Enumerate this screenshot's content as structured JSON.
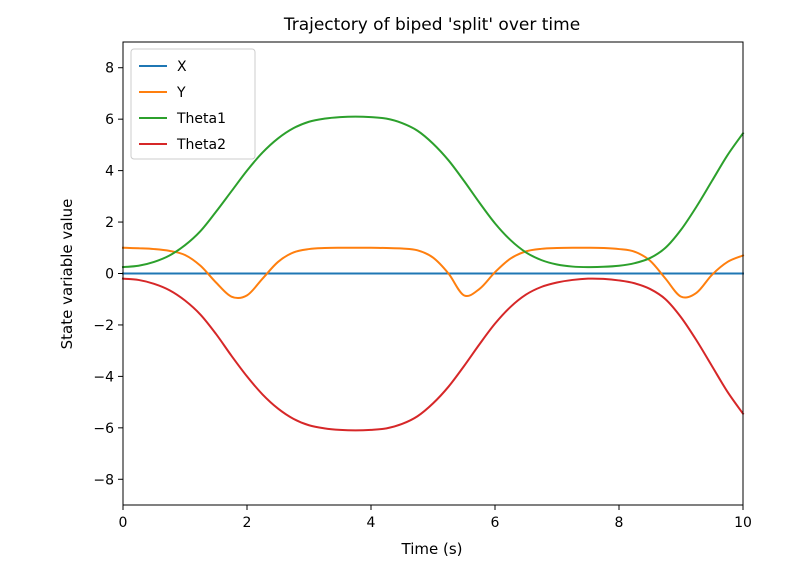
{
  "chart_data": {
    "type": "line",
    "title": "Trajectory of biped 'split' over time",
    "xlabel": "Time (s)",
    "ylabel": "State variable value",
    "xlim": [
      0,
      10
    ],
    "ylim": [
      -9,
      9
    ],
    "xticks": [
      0,
      2,
      4,
      6,
      8,
      10
    ],
    "xtick_labels": [
      "0",
      "2",
      "4",
      "6",
      "8",
      "10"
    ],
    "yticks": [
      -8,
      -6,
      -4,
      -2,
      0,
      2,
      4,
      6,
      8
    ],
    "ytick_labels": [
      "−8",
      "−6",
      "−4",
      "−2",
      "0",
      "2",
      "4",
      "6",
      "8"
    ],
    "grid": false,
    "legend_position": "top-left",
    "x": [
      0,
      0.25,
      0.5,
      0.75,
      1,
      1.25,
      1.5,
      1.75,
      2,
      2.25,
      2.5,
      2.75,
      3,
      3.25,
      3.5,
      3.75,
      4,
      4.25,
      4.5,
      4.75,
      5,
      5.25,
      5.5,
      5.75,
      6,
      6.25,
      6.5,
      6.75,
      7,
      7.25,
      7.5,
      7.75,
      8,
      8.25,
      8.5,
      8.75,
      9,
      9.25,
      9.5,
      9.75,
      10
    ],
    "series": [
      {
        "name": "X",
        "color": "#1f77b4",
        "values": [
          0,
          0,
          0,
          0,
          0,
          0,
          0,
          0,
          0,
          0,
          0,
          0,
          0,
          0,
          0,
          0,
          0,
          0,
          0,
          0,
          0,
          0,
          0,
          0,
          0,
          0,
          0,
          0,
          0,
          0,
          0,
          0,
          0,
          0,
          0,
          0,
          0,
          0,
          0,
          0,
          0
        ]
      },
      {
        "name": "Y",
        "color": "#ff7f0e",
        "values": [
          1.0,
          0.98,
          0.95,
          0.88,
          0.72,
          0.3,
          -0.35,
          -0.9,
          -0.85,
          -0.2,
          0.45,
          0.82,
          0.95,
          0.99,
          1.0,
          1.0,
          1.0,
          0.99,
          0.97,
          0.9,
          0.62,
          0.0,
          -0.85,
          -0.6,
          0.05,
          0.58,
          0.86,
          0.96,
          0.99,
          1.0,
          1.0,
          0.99,
          0.95,
          0.85,
          0.5,
          -0.2,
          -0.9,
          -0.75,
          -0.05,
          0.45,
          0.7
        ]
      },
      {
        "name": "Theta1",
        "color": "#2ca02c",
        "values": [
          0.25,
          0.3,
          0.45,
          0.7,
          1.1,
          1.65,
          2.4,
          3.2,
          4.0,
          4.7,
          5.25,
          5.65,
          5.9,
          6.02,
          6.08,
          6.1,
          6.08,
          6.02,
          5.85,
          5.55,
          5.05,
          4.4,
          3.6,
          2.75,
          1.95,
          1.3,
          0.82,
          0.52,
          0.35,
          0.27,
          0.25,
          0.26,
          0.3,
          0.4,
          0.6,
          1.0,
          1.7,
          2.6,
          3.6,
          4.6,
          5.45
        ]
      },
      {
        "name": "Theta2",
        "color": "#d62728",
        "values": [
          -0.2,
          -0.25,
          -0.4,
          -0.65,
          -1.05,
          -1.6,
          -2.35,
          -3.2,
          -4.0,
          -4.7,
          -5.25,
          -5.65,
          -5.9,
          -6.02,
          -6.08,
          -6.1,
          -6.08,
          -6.02,
          -5.85,
          -5.55,
          -5.05,
          -4.4,
          -3.6,
          -2.75,
          -1.95,
          -1.3,
          -0.82,
          -0.52,
          -0.35,
          -0.25,
          -0.2,
          -0.21,
          -0.27,
          -0.38,
          -0.6,
          -1.0,
          -1.7,
          -2.6,
          -3.6,
          -4.6,
          -5.45
        ]
      }
    ]
  }
}
